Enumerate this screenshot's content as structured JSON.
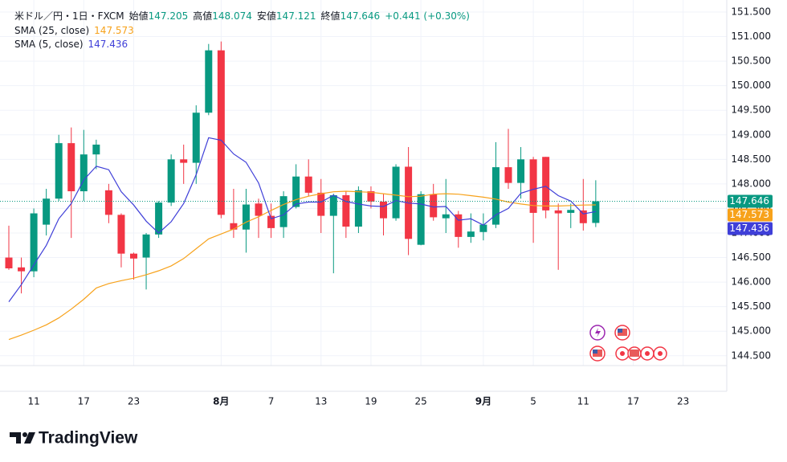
{
  "chart_data": {
    "type": "candlestick",
    "title": "米ドル／円・1日・FXCM",
    "ohlc_labels": {
      "open": "始値",
      "high": "高値",
      "low": "安値",
      "close": "終値"
    },
    "change": "+0.441 (+0.30%)",
    "up_color": "#089981",
    "down_color": "#f23645",
    "categories": [
      null,
      null,
      "11",
      null,
      null,
      null,
      "17",
      null,
      null,
      null,
      "23",
      null,
      null,
      null,
      null,
      null,
      null,
      "8月",
      null,
      null,
      null,
      "7",
      null,
      null,
      null,
      "13",
      null,
      null,
      null,
      "19",
      null,
      null,
      null,
      "25",
      null,
      null,
      null,
      null,
      "9月",
      null,
      null,
      null,
      "5",
      null,
      null,
      null,
      "11",
      null,
      null,
      null,
      "17",
      null,
      null,
      null,
      "23",
      null,
      null,
      null
    ],
    "open": [
      146.5,
      146.3,
      146.22,
      147.17,
      147.7,
      148.83,
      147.85,
      148.6,
      147.87,
      147.37,
      146.58,
      146.5,
      146.97,
      147.62,
      148.5,
      148.43,
      149.45,
      150.72,
      147.2,
      147.07,
      147.6,
      147.35,
      147.12,
      147.53,
      148.15,
      147.82,
      147.35,
      147.77,
      147.13,
      147.85,
      147.64,
      147.3,
      148.35,
      146.76,
      147.79,
      147.3,
      147.38,
      146.92,
      147.02,
      147.17,
      148.34,
      148.02,
      148.5,
      148.55,
      147.46,
      147.41,
      147.46,
      147.205,
      null,
      null,
      null,
      null,
      null,
      null,
      null,
      null,
      null,
      null
    ],
    "high": [
      147.15,
      146.5,
      147.5,
      147.9,
      149.0,
      149.15,
      149.1,
      148.9,
      148.0,
      147.4,
      146.6,
      147.0,
      147.65,
      148.6,
      148.8,
      149.6,
      150.85,
      150.9,
      147.9,
      147.9,
      147.7,
      147.6,
      147.85,
      148.4,
      148.5,
      148.1,
      147.8,
      147.85,
      147.95,
      147.95,
      147.8,
      148.4,
      148.75,
      147.85,
      148.0,
      148.1,
      147.45,
      147.4,
      147.4,
      148.85,
      149.12,
      148.75,
      148.55,
      148.55,
      147.6,
      147.6,
      148.1,
      148.074,
      null,
      null,
      null,
      null,
      null,
      null,
      null,
      null,
      null,
      null
    ],
    "low": [
      146.25,
      145.77,
      146.1,
      146.95,
      147.65,
      146.9,
      147.65,
      148.3,
      147.2,
      146.3,
      146.05,
      145.85,
      146.9,
      147.55,
      148.0,
      148.0,
      149.4,
      147.3,
      146.9,
      146.6,
      146.9,
      146.9,
      146.9,
      147.5,
      147.75,
      147.0,
      146.18,
      146.9,
      147.0,
      147.5,
      146.95,
      147.25,
      146.55,
      146.75,
      147.25,
      147.0,
      146.7,
      146.8,
      146.85,
      147.1,
      147.9,
      147.7,
      146.8,
      147.3,
      146.25,
      147.1,
      147.05,
      147.121,
      null,
      null,
      null,
      null,
      null,
      null,
      null,
      null,
      null,
      null
    ],
    "close": [
      146.28,
      146.22,
      147.4,
      147.7,
      148.83,
      147.85,
      148.6,
      148.8,
      147.37,
      146.58,
      146.48,
      146.97,
      147.62,
      148.5,
      148.43,
      149.45,
      150.72,
      147.37,
      147.07,
      147.58,
      147.35,
      147.1,
      147.75,
      148.15,
      147.82,
      147.35,
      147.77,
      147.13,
      147.87,
      147.64,
      147.3,
      148.35,
      146.88,
      147.79,
      147.32,
      147.38,
      146.92,
      147.03,
      147.17,
      148.34,
      148.02,
      148.5,
      147.41,
      147.46,
      147.4,
      147.47,
      147.2,
      147.646,
      null,
      null,
      null,
      null,
      null,
      null,
      null,
      null,
      null,
      null
    ],
    "series": [
      {
        "name": "SMA (25, close)",
        "color": "#f7a21b",
        "values": [
          144.83,
          144.92,
          145.02,
          145.13,
          145.27,
          145.45,
          145.65,
          145.88,
          145.97,
          146.03,
          146.08,
          146.15,
          146.23,
          146.33,
          146.48,
          146.68,
          146.88,
          146.98,
          147.08,
          147.22,
          147.33,
          147.46,
          147.58,
          147.68,
          147.75,
          147.8,
          147.84,
          147.85,
          147.84,
          147.83,
          147.8,
          147.77,
          147.74,
          147.75,
          147.79,
          147.8,
          147.79,
          147.76,
          147.73,
          147.69,
          147.63,
          147.59,
          147.56,
          147.55,
          147.55,
          147.56,
          147.57,
          147.573,
          null,
          null,
          null,
          null,
          null,
          null,
          null,
          null,
          null,
          null
        ]
      },
      {
        "name": "SMA (5, close)",
        "color": "#3f3fd8",
        "values": [
          145.6,
          145.95,
          146.35,
          146.75,
          147.29,
          147.6,
          148.08,
          148.36,
          148.29,
          147.84,
          147.57,
          147.24,
          147.0,
          147.23,
          147.6,
          148.19,
          148.94,
          148.89,
          148.61,
          148.44,
          148.02,
          147.29,
          147.37,
          147.59,
          147.63,
          147.63,
          147.77,
          147.64,
          147.59,
          147.55,
          147.54,
          147.66,
          147.61,
          147.59,
          147.53,
          147.54,
          147.26,
          147.29,
          147.16,
          147.37,
          147.5,
          147.81,
          147.89,
          147.95,
          147.76,
          147.65,
          147.39,
          147.436,
          null,
          null,
          null,
          null,
          null,
          null,
          null,
          null,
          null,
          null
        ]
      }
    ],
    "ylim": [
      144.3,
      151.745
    ],
    "yticks": [
      {
        "value": 144.5,
        "label": "144.500"
      },
      {
        "value": 145,
        "label": "145.000"
      },
      {
        "value": 145.5,
        "label": "145.500"
      },
      {
        "value": 146,
        "label": "146.000"
      },
      {
        "value": 146.5,
        "label": "146.500"
      },
      {
        "value": 147,
        "label": "147.000"
      },
      {
        "value": 147.5,
        "label": "147.500"
      },
      {
        "value": 148,
        "label": "148.000"
      },
      {
        "value": 148.5,
        "label": "148.500"
      },
      {
        "value": 149,
        "label": "149.000"
      },
      {
        "value": 149.5,
        "label": "149.500"
      },
      {
        "value": 150,
        "label": "150.000"
      },
      {
        "value": 150.5,
        "label": "150.500"
      },
      {
        "value": 151,
        "label": "151.000"
      },
      {
        "value": 151.5,
        "label": "151.500"
      }
    ]
  },
  "brand": "TradingView"
}
